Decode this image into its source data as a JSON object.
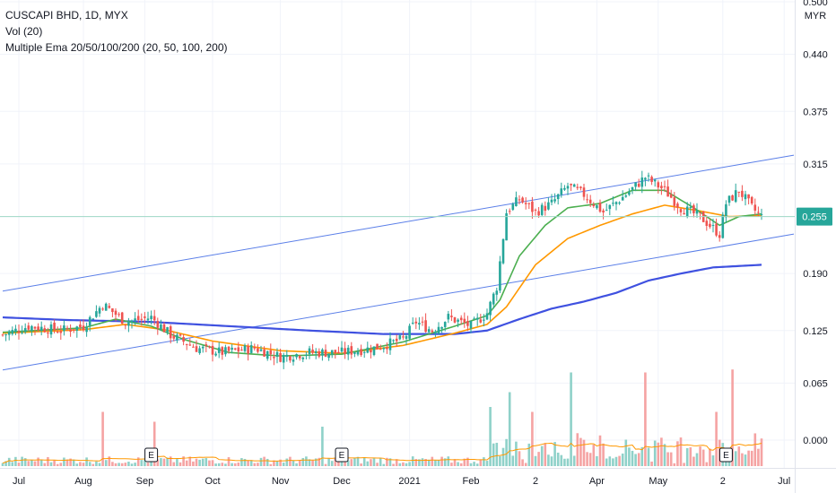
{
  "legend": {
    "title": "CUSCAPI BHD, 1D, MYX",
    "vol": "Vol (20)",
    "ema": "Multiple Ema 20/50/100/200 (20, 50, 100, 200)"
  },
  "currency": "MYR",
  "colors": {
    "up": "#26a69a",
    "down": "#ef5350",
    "vol_up": "#8fd1c9",
    "vol_down": "#f5a3a3",
    "ema20": "#4caf50",
    "ema50": "#ff9800",
    "ema200": "#3f51e0",
    "channel": "#5b7fe8",
    "price_line": "#9fd8c6",
    "grid": "#f0f3fa"
  },
  "chart_data": {
    "type": "candlestick",
    "title": "CUSCAPI BHD, 1D, MYX",
    "y_ticks": [
      "0.500",
      "0.440",
      "0.375",
      "0.315",
      "0.255",
      "0.190",
      "0.125",
      "0.065",
      "0.000"
    ],
    "y_tick_values": [
      0.5,
      0.44,
      0.375,
      0.315,
      0.255,
      0.19,
      0.125,
      0.065,
      0.0
    ],
    "ylim": [
      -0.027,
      0.5
    ],
    "x_ticks": [
      "Jul",
      "Aug",
      "Sep",
      "Oct",
      "Nov",
      "Dec",
      "2021",
      "Feb",
      "2",
      "Apr",
      "May",
      "2",
      "Jul"
    ],
    "x_tick_bars": [
      5,
      25,
      44,
      65,
      86,
      105,
      126,
      145,
      165,
      184,
      203,
      223,
      242
    ],
    "last_price": "0.255",
    "last_price_value": 0.255,
    "earnings_markers": [
      "E",
      "E",
      "E"
    ],
    "earnings_bars": [
      46,
      105,
      224
    ],
    "price_anchors": [
      [
        0,
        0.12
      ],
      [
        8,
        0.13
      ],
      [
        18,
        0.125
      ],
      [
        25,
        0.13
      ],
      [
        31,
        0.155
      ],
      [
        38,
        0.135
      ],
      [
        46,
        0.14
      ],
      [
        52,
        0.12
      ],
      [
        60,
        0.105
      ],
      [
        68,
        0.1
      ],
      [
        78,
        0.105
      ],
      [
        86,
        0.095
      ],
      [
        95,
        0.1
      ],
      [
        105,
        0.1
      ],
      [
        115,
        0.105
      ],
      [
        124,
        0.115
      ],
      [
        128,
        0.135
      ],
      [
        133,
        0.125
      ],
      [
        138,
        0.14
      ],
      [
        145,
        0.13
      ],
      [
        150,
        0.145
      ],
      [
        153,
        0.175
      ],
      [
        156,
        0.26
      ],
      [
        160,
        0.275
      ],
      [
        165,
        0.26
      ],
      [
        170,
        0.27
      ],
      [
        175,
        0.29
      ],
      [
        180,
        0.28
      ],
      [
        186,
        0.26
      ],
      [
        193,
        0.28
      ],
      [
        199,
        0.3
      ],
      [
        205,
        0.285
      ],
      [
        210,
        0.265
      ],
      [
        216,
        0.255
      ],
      [
        222,
        0.235
      ],
      [
        224,
        0.27
      ],
      [
        228,
        0.285
      ],
      [
        232,
        0.265
      ],
      [
        235,
        0.255
      ]
    ],
    "ema_anchors": {
      "ema20": [
        [
          0,
          0.123
        ],
        [
          25,
          0.128
        ],
        [
          35,
          0.138
        ],
        [
          46,
          0.13
        ],
        [
          56,
          0.115
        ],
        [
          70,
          0.1
        ],
        [
          86,
          0.096
        ],
        [
          105,
          0.098
        ],
        [
          124,
          0.112
        ],
        [
          140,
          0.13
        ],
        [
          150,
          0.142
        ],
        [
          154,
          0.16
        ],
        [
          160,
          0.21
        ],
        [
          168,
          0.245
        ],
        [
          175,
          0.265
        ],
        [
          185,
          0.27
        ],
        [
          195,
          0.285
        ],
        [
          205,
          0.285
        ],
        [
          214,
          0.265
        ],
        [
          222,
          0.245
        ],
        [
          228,
          0.255
        ],
        [
          235,
          0.258
        ]
      ],
      "ema50": [
        [
          0,
          0.122
        ],
        [
          25,
          0.126
        ],
        [
          38,
          0.132
        ],
        [
          50,
          0.126
        ],
        [
          65,
          0.113
        ],
        [
          86,
          0.102
        ],
        [
          105,
          0.099
        ],
        [
          124,
          0.108
        ],
        [
          140,
          0.122
        ],
        [
          150,
          0.132
        ],
        [
          156,
          0.152
        ],
        [
          165,
          0.2
        ],
        [
          175,
          0.23
        ],
        [
          185,
          0.245
        ],
        [
          195,
          0.258
        ],
        [
          205,
          0.268
        ],
        [
          215,
          0.262
        ],
        [
          225,
          0.255
        ],
        [
          235,
          0.256
        ]
      ],
      "ema200": [
        [
          0,
          0.14
        ],
        [
          20,
          0.137
        ],
        [
          45,
          0.135
        ],
        [
          70,
          0.13
        ],
        [
          95,
          0.125
        ],
        [
          118,
          0.121
        ],
        [
          140,
          0.121
        ],
        [
          150,
          0.125
        ],
        [
          160,
          0.138
        ],
        [
          170,
          0.15
        ],
        [
          180,
          0.158
        ],
        [
          190,
          0.168
        ],
        [
          200,
          0.182
        ],
        [
          210,
          0.19
        ],
        [
          220,
          0.197
        ],
        [
          235,
          0.2
        ]
      ]
    },
    "channel_upper": [
      [
        0,
        0.17
      ],
      [
        245,
        0.325
      ]
    ],
    "channel_lower": [
      [
        0,
        0.08
      ],
      [
        245,
        0.235
      ]
    ],
    "volume_spikes": [
      [
        31,
        0.55
      ],
      [
        47,
        0.45
      ],
      [
        99,
        0.4
      ],
      [
        151,
        0.6
      ],
      [
        157,
        0.75
      ],
      [
        164,
        0.55
      ],
      [
        176,
        0.95
      ],
      [
        199,
        0.95
      ],
      [
        221,
        0.55
      ],
      [
        226,
        0.98
      ]
    ]
  }
}
